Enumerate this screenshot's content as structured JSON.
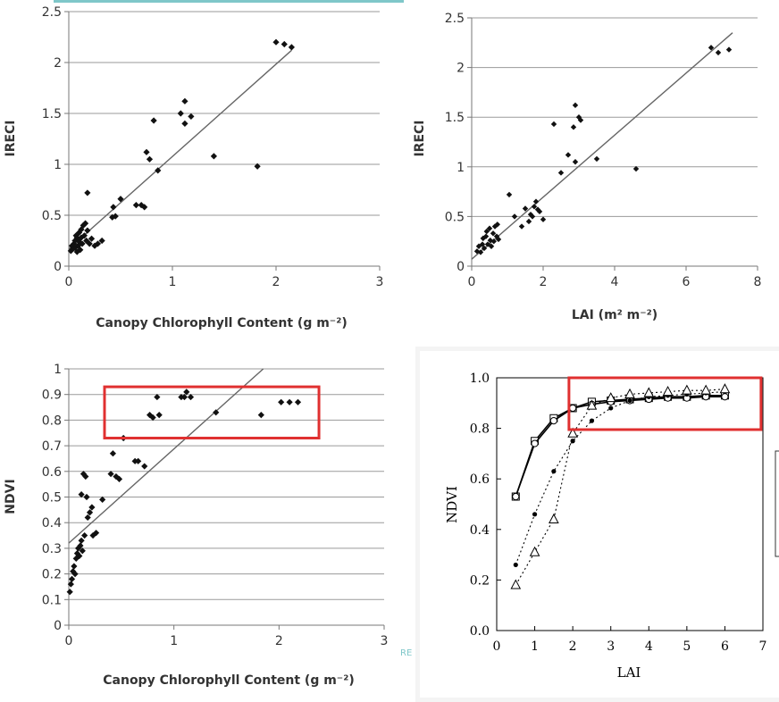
{
  "chart_data": [
    {
      "id": "irec_vs_ccc",
      "type": "scatter",
      "xlabel": "Canopy Chlorophyll Content (g m⁻²)",
      "ylabel": "IRECI",
      "xlim": [
        0,
        3
      ],
      "ylim": [
        0,
        2.5
      ],
      "xticks": [
        0,
        1,
        2,
        3
      ],
      "yticks": [
        0,
        0.5,
        1,
        1.5,
        2,
        2.5
      ],
      "ytick_labels": [
        "0",
        "0.5",
        "1",
        "1.5",
        "2",
        "2.5"
      ],
      "grid": true,
      "points": [
        [
          0.02,
          0.15
        ],
        [
          0.03,
          0.2
        ],
        [
          0.04,
          0.17
        ],
        [
          0.05,
          0.22
        ],
        [
          0.06,
          0.18
        ],
        [
          0.06,
          0.25
        ],
        [
          0.07,
          0.3
        ],
        [
          0.08,
          0.14
        ],
        [
          0.08,
          0.28
        ],
        [
          0.09,
          0.2
        ],
        [
          0.1,
          0.33
        ],
        [
          0.1,
          0.24
        ],
        [
          0.11,
          0.16
        ],
        [
          0.12,
          0.36
        ],
        [
          0.12,
          0.28
        ],
        [
          0.13,
          0.22
        ],
        [
          0.14,
          0.4
        ],
        [
          0.15,
          0.3
        ],
        [
          0.16,
          0.42
        ],
        [
          0.17,
          0.25
        ],
        [
          0.18,
          0.72
        ],
        [
          0.18,
          0.35
        ],
        [
          0.2,
          0.22
        ],
        [
          0.22,
          0.27
        ],
        [
          0.25,
          0.2
        ],
        [
          0.28,
          0.22
        ],
        [
          0.32,
          0.25
        ],
        [
          0.42,
          0.48
        ],
        [
          0.43,
          0.58
        ],
        [
          0.45,
          0.49
        ],
        [
          0.5,
          0.66
        ],
        [
          0.65,
          0.6
        ],
        [
          0.7,
          0.6
        ],
        [
          0.73,
          0.58
        ],
        [
          0.75,
          1.12
        ],
        [
          0.78,
          1.05
        ],
        [
          0.82,
          1.43
        ],
        [
          0.86,
          0.94
        ],
        [
          1.08,
          1.5
        ],
        [
          1.12,
          1.4
        ],
        [
          1.12,
          1.62
        ],
        [
          1.18,
          1.47
        ],
        [
          1.4,
          1.08
        ],
        [
          1.82,
          0.98
        ],
        [
          2.0,
          2.2
        ],
        [
          2.08,
          2.18
        ],
        [
          2.15,
          2.15
        ]
      ],
      "trendline": {
        "x": [
          0,
          2.15
        ],
        "y": [
          0.17,
          2.12
        ]
      }
    },
    {
      "id": "irec_vs_lai",
      "type": "scatter",
      "xlabel": "LAI (m² m⁻²)",
      "ylabel": "IRECI",
      "xlim": [
        0,
        8
      ],
      "ylim": [
        0,
        2.5
      ],
      "xticks": [
        0,
        2,
        4,
        6,
        8
      ],
      "yticks": [
        0,
        0.5,
        1,
        1.5,
        2,
        2.5
      ],
      "ytick_labels": [
        "0",
        "0.5",
        "1",
        "1.5",
        "2",
        "2.5"
      ],
      "grid": true,
      "points": [
        [
          0.15,
          0.15
        ],
        [
          0.2,
          0.2
        ],
        [
          0.25,
          0.14
        ],
        [
          0.3,
          0.22
        ],
        [
          0.32,
          0.28
        ],
        [
          0.35,
          0.18
        ],
        [
          0.4,
          0.3
        ],
        [
          0.42,
          0.35
        ],
        [
          0.45,
          0.22
        ],
        [
          0.5,
          0.38
        ],
        [
          0.52,
          0.26
        ],
        [
          0.55,
          0.2
        ],
        [
          0.6,
          0.33
        ],
        [
          0.62,
          0.25
        ],
        [
          0.65,
          0.4
        ],
        [
          0.7,
          0.3
        ],
        [
          0.72,
          0.42
        ],
        [
          0.75,
          0.27
        ],
        [
          1.05,
          0.72
        ],
        [
          1.2,
          0.5
        ],
        [
          1.4,
          0.4
        ],
        [
          1.5,
          0.58
        ],
        [
          1.6,
          0.45
        ],
        [
          1.65,
          0.52
        ],
        [
          1.7,
          0.5
        ],
        [
          1.75,
          0.6
        ],
        [
          1.8,
          0.65
        ],
        [
          1.85,
          0.57
        ],
        [
          1.9,
          0.55
        ],
        [
          2.0,
          0.47
        ],
        [
          2.3,
          1.43
        ],
        [
          2.5,
          0.94
        ],
        [
          2.7,
          1.12
        ],
        [
          2.85,
          1.4
        ],
        [
          2.9,
          1.05
        ],
        [
          2.9,
          1.62
        ],
        [
          3.0,
          1.5
        ],
        [
          3.05,
          1.47
        ],
        [
          3.5,
          1.08
        ],
        [
          4.6,
          0.98
        ],
        [
          6.7,
          2.2
        ],
        [
          6.9,
          2.15
        ],
        [
          7.2,
          2.18
        ]
      ],
      "trendline": {
        "x": [
          0,
          7.3
        ],
        "y": [
          0.07,
          2.35
        ]
      }
    },
    {
      "id": "ndvi_vs_ccc",
      "type": "scatter",
      "xlabel": "Canopy Chlorophyll Content (g m⁻²)",
      "ylabel": "NDVI",
      "xlim": [
        0,
        3
      ],
      "ylim": [
        0,
        1
      ],
      "xticks": [
        0,
        1,
        2,
        3
      ],
      "yticks": [
        0,
        0.1,
        0.2,
        0.3,
        0.4,
        0.5,
        0.6,
        0.7,
        0.8,
        0.9,
        1
      ],
      "ytick_labels": [
        "0",
        "0.1",
        "0.2",
        "0.3",
        "0.4",
        "0.5",
        "0.6",
        "0.7",
        "0.8",
        "0.9",
        "1"
      ],
      "grid": true,
      "points": [
        [
          0.01,
          0.13
        ],
        [
          0.02,
          0.16
        ],
        [
          0.03,
          0.18
        ],
        [
          0.04,
          0.21
        ],
        [
          0.05,
          0.23
        ],
        [
          0.06,
          0.2
        ],
        [
          0.07,
          0.26
        ],
        [
          0.08,
          0.28
        ],
        [
          0.09,
          0.3
        ],
        [
          0.1,
          0.27
        ],
        [
          0.11,
          0.31
        ],
        [
          0.12,
          0.33
        ],
        [
          0.12,
          0.51
        ],
        [
          0.13,
          0.29
        ],
        [
          0.14,
          0.59
        ],
        [
          0.15,
          0.35
        ],
        [
          0.16,
          0.58
        ],
        [
          0.17,
          0.5
        ],
        [
          0.18,
          0.42
        ],
        [
          0.2,
          0.44
        ],
        [
          0.22,
          0.46
        ],
        [
          0.23,
          0.35
        ],
        [
          0.26,
          0.36
        ],
        [
          0.32,
          0.49
        ],
        [
          0.4,
          0.59
        ],
        [
          0.42,
          0.67
        ],
        [
          0.45,
          0.58
        ],
        [
          0.48,
          0.57
        ],
        [
          0.52,
          0.73
        ],
        [
          0.63,
          0.64
        ],
        [
          0.66,
          0.64
        ],
        [
          0.72,
          0.62
        ],
        [
          0.77,
          0.82
        ],
        [
          0.8,
          0.81
        ],
        [
          0.84,
          0.89
        ],
        [
          0.86,
          0.82
        ],
        [
          1.07,
          0.89
        ],
        [
          1.1,
          0.89
        ],
        [
          1.12,
          0.91
        ],
        [
          1.16,
          0.89
        ],
        [
          1.4,
          0.83
        ],
        [
          1.83,
          0.82
        ],
        [
          2.02,
          0.87
        ],
        [
          2.1,
          0.87
        ],
        [
          2.18,
          0.87
        ]
      ],
      "trendline": {
        "x": [
          0,
          1.85
        ],
        "y": [
          0.32,
          1.0
        ]
      },
      "annotations": [
        {
          "type": "box",
          "x": [
            0.34,
            2.38
          ],
          "y": [
            0.73,
            0.93
          ],
          "color": "#e03030"
        }
      ]
    },
    {
      "id": "ndvi_vs_lai",
      "type": "line",
      "xlabel": "LAI",
      "ylabel": "NDVI",
      "xlim": [
        0,
        7
      ],
      "ylim": [
        0,
        1
      ],
      "xticks": [
        0,
        1,
        2,
        3,
        4,
        5,
        6,
        7
      ],
      "xtick_labels": [
        "0",
        "1",
        "2",
        "3",
        "4",
        "5",
        "6",
        "7"
      ],
      "yticks": [
        0,
        0.2,
        0.4,
        0.6,
        0.8,
        1
      ],
      "ytick_labels": [
        "0.0",
        "0.2",
        "0.4",
        "0.6",
        "0.8",
        "1.0"
      ],
      "grid": false,
      "series": [
        {
          "name": "squares",
          "marker": "square-open",
          "line": "solid",
          "x": [
            0.5,
            1,
            1.5,
            2,
            2.5,
            3,
            3.5,
            4,
            4.5,
            5,
            5.5,
            6
          ],
          "y": [
            0.53,
            0.75,
            0.84,
            0.88,
            0.905,
            0.91,
            0.915,
            0.92,
            0.925,
            0.925,
            0.93,
            0.93
          ]
        },
        {
          "name": "circles",
          "marker": "circle-open",
          "line": "solid",
          "x": [
            0.5,
            1,
            1.5,
            2,
            2.5,
            3,
            3.5,
            4,
            4.5,
            5,
            5.5,
            6
          ],
          "y": [
            0.53,
            0.74,
            0.83,
            0.88,
            0.895,
            0.905,
            0.91,
            0.915,
            0.92,
            0.92,
            0.925,
            0.925
          ]
        },
        {
          "name": "dots",
          "marker": "dot",
          "line": "dotted",
          "x": [
            0.5,
            1,
            1.5,
            2,
            2.5,
            3,
            3.5,
            4,
            4.5,
            5,
            5.5,
            6
          ],
          "y": [
            0.26,
            0.46,
            0.63,
            0.75,
            0.83,
            0.88,
            0.91,
            0.925,
            0.93,
            0.935,
            0.94,
            0.945
          ]
        },
        {
          "name": "triangles",
          "marker": "triangle-open",
          "line": "dotted",
          "x": [
            0.5,
            1,
            1.5,
            2,
            2.5,
            3,
            3.5,
            4,
            4.5,
            5,
            5.5,
            6
          ],
          "y": [
            0.18,
            0.31,
            0.44,
            0.78,
            0.89,
            0.92,
            0.935,
            0.94,
            0.945,
            0.95,
            0.95,
            0.955
          ]
        }
      ],
      "annotations": [
        {
          "type": "box",
          "x": [
            1.9,
            6.95
          ],
          "y": [
            0.795,
            1.0
          ],
          "color": "#e03030"
        }
      ]
    }
  ],
  "watermark": "RE"
}
